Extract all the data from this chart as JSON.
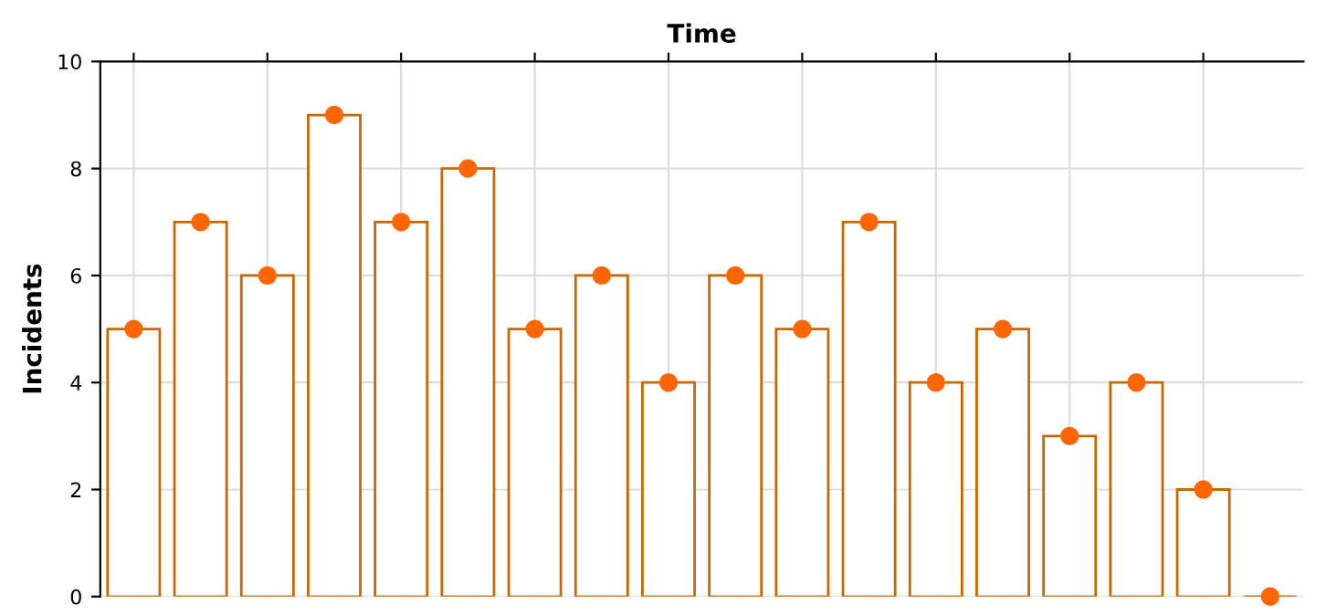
{
  "chart_data": {
    "type": "bar",
    "xlabel": "Time",
    "ylabel": "Incidents",
    "categories": [
      null,
      null,
      null,
      null,
      null,
      null,
      null,
      null,
      null,
      null,
      null,
      null,
      null,
      null,
      null,
      null,
      null,
      null
    ],
    "series": [
      {
        "color": "#cc6600",
        "values": [
          5,
          7,
          6,
          9,
          7,
          8,
          5,
          6,
          4,
          6,
          5,
          7,
          4,
          5,
          3,
          4,
          2,
          0
        ]
      },
      {
        "type": "scatter",
        "color": "#ff6600",
        "marker": "circle",
        "values": [
          5,
          7,
          6,
          9,
          7,
          8,
          5,
          6,
          4,
          6,
          5,
          7,
          4,
          5,
          3,
          4,
          2,
          0
        ]
      }
    ],
    "ylim": [
      0,
      10
    ],
    "yticks": [
      0,
      2,
      4,
      6,
      8,
      10
    ],
    "grid": true,
    "tick_labels": "y"
  }
}
